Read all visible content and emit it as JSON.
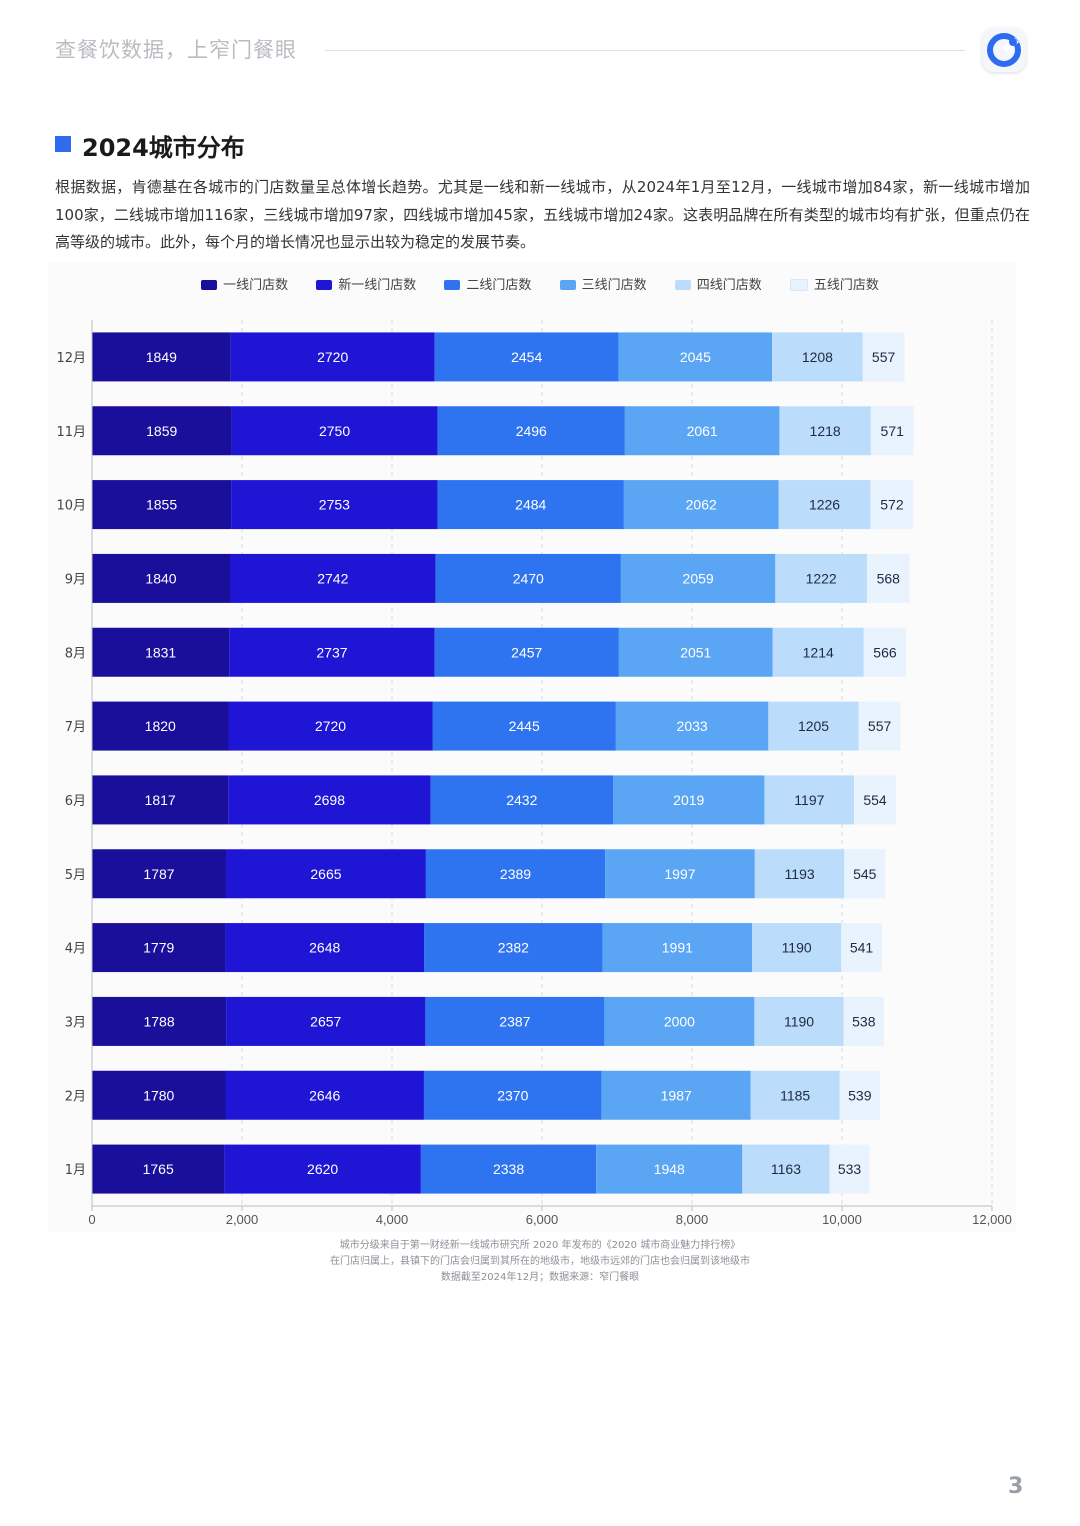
{
  "header": {
    "slogan": "查餐饮数据，上窄门餐眼"
  },
  "section": {
    "title": "2024城市分布"
  },
  "paragraph": "根据数据，肯德基在各城市的门店数量呈总体增长趋势。尤其是一线和新一线城市，从2024年1月至12月，一线城市增加84家，新一线城市增加100家，二线城市增加116家，三线城市增加97家，四线城市增加45家，五线城市增加24家。这表明品牌在所有类型的城市均有扩张，但重点仍在高等级的城市。此外，每个月的增长情况也显示出较为稳定的发展节奏。",
  "colors": {
    "accent": "#2f6bf0",
    "series": [
      "#1a0f9a",
      "#1f15d4",
      "#2e74f0",
      "#5aa6f4",
      "#bcdcfb",
      "#e8f3fd"
    ],
    "label_dark": "#ffffff",
    "label_light": "#1f2a44"
  },
  "chart_data": {
    "type": "bar",
    "orientation": "horizontal",
    "stacked": true,
    "categories": [
      "12月",
      "11月",
      "10月",
      "9月",
      "8月",
      "7月",
      "6月",
      "5月",
      "4月",
      "3月",
      "2月",
      "1月"
    ],
    "series": [
      {
        "name": "一线门店数",
        "values": [
          1849,
          1859,
          1855,
          1840,
          1831,
          1820,
          1817,
          1787,
          1779,
          1788,
          1780,
          1765
        ]
      },
      {
        "name": "新一线门店数",
        "values": [
          2720,
          2750,
          2753,
          2742,
          2737,
          2720,
          2698,
          2665,
          2648,
          2657,
          2646,
          2620
        ]
      },
      {
        "name": "二线门店数",
        "values": [
          2454,
          2496,
          2484,
          2470,
          2457,
          2445,
          2432,
          2389,
          2382,
          2387,
          2370,
          2338
        ]
      },
      {
        "name": "三线门店数",
        "values": [
          2045,
          2061,
          2062,
          2059,
          2051,
          2033,
          2019,
          1997,
          1991,
          2000,
          1987,
          1948
        ]
      },
      {
        "name": "四线门店数",
        "values": [
          1208,
          1218,
          1226,
          1222,
          1214,
          1205,
          1197,
          1193,
          1190,
          1190,
          1185,
          1163
        ]
      },
      {
        "name": "五线门店数",
        "values": [
          557,
          571,
          572,
          568,
          566,
          557,
          554,
          545,
          541,
          538,
          539,
          533
        ]
      }
    ],
    "xlim": [
      0,
      12000
    ],
    "xticks": [
      0,
      2000,
      4000,
      6000,
      8000,
      10000,
      12000
    ],
    "xtick_labels": [
      "0",
      "2,000",
      "4,000",
      "6,000",
      "8,000",
      "10,000",
      "12,000"
    ],
    "legend_position": "top-center",
    "grid": "vertical dashed"
  },
  "notes": [
    "城市分级来自于第一财经新一线城市研究所 2020 年发布的《2020 城市商业魅力排行榜》",
    "在门店归属上，县镇下的门店会归属到其所在的地级市，地级市远郊的门店也会归属到该地级市",
    "数据截至2024年12月；数据来源：窄门餐眼"
  ],
  "page_number": "3"
}
